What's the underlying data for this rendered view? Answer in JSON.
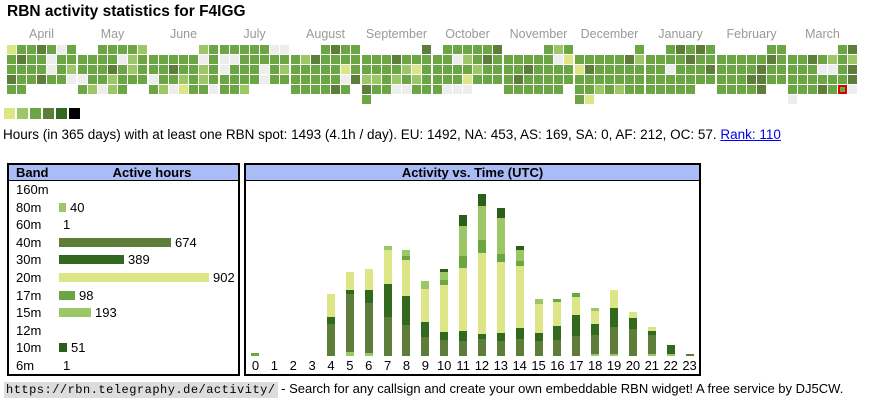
{
  "title": "RBN activity statistics for F4IGG",
  "colors": {
    "level_palette": {
      "0": "#ededed",
      "1": "#dce687",
      "2": "#9dc767",
      "3": "#6ca644",
      "4": "#5e7d3b",
      "5": "#33691e",
      "6": "#000000"
    },
    "band_colors": {
      "80m": "#9dc767",
      "40m": "#5e7d3b",
      "30m": "#33691e",
      "20m": "#dce687",
      "17m": "#6ca644",
      "15m": "#9dc767",
      "10m": "#2b5e18"
    },
    "header_bg": "#aabcf5",
    "highlight_border": "#dd0000",
    "link": "#0000ee"
  },
  "heatmap": {
    "months": [
      {
        "label": "April",
        "start_col": 1,
        "cells": [
          1,
          3,
          3,
          4,
          3,
          0,
          3,
          3,
          4,
          3,
          3,
          0,
          3,
          3,
          3,
          3,
          3,
          3,
          0,
          3,
          2,
          4,
          3,
          3,
          4,
          3,
          3,
          0,
          3,
          3
        ]
      },
      {
        "label": "May",
        "start_col": 3,
        "cells": [
          3,
          3,
          3,
          3,
          2,
          3,
          3,
          3,
          3,
          0,
          2,
          3,
          3,
          3,
          3,
          4,
          3,
          2,
          3,
          0,
          3,
          3,
          2,
          3,
          3,
          3,
          3,
          2,
          0,
          2,
          3
        ]
      },
      {
        "label": "June",
        "start_col": 6,
        "cells": [
          2,
          3,
          3,
          3,
          3,
          3,
          3,
          0,
          3,
          3,
          3,
          4,
          3,
          3,
          2,
          3,
          0,
          3,
          3,
          2,
          3,
          2,
          3,
          3,
          2,
          0,
          1,
          3,
          3,
          0
        ]
      },
      {
        "label": "July",
        "start_col": 1,
        "cells": [
          3,
          3,
          3,
          3,
          3,
          0,
          0,
          0,
          0,
          3,
          3,
          3,
          3,
          3,
          0,
          3,
          3,
          3,
          0,
          3,
          2,
          3,
          3,
          3,
          3,
          0,
          3,
          3,
          3,
          3,
          2
        ]
      },
      {
        "label": "August",
        "start_col": 4,
        "cells": [
          3,
          4,
          3,
          3,
          3,
          2,
          4,
          3,
          3,
          3,
          3,
          3,
          3,
          3,
          3,
          3,
          1,
          3,
          3,
          3,
          3,
          3,
          3,
          0,
          4,
          3,
          3,
          3,
          3,
          4,
          3
        ]
      },
      {
        "label": "September",
        "start_col": 7,
        "cells": [
          4,
          3,
          3,
          3,
          4,
          3,
          3,
          3,
          3,
          3,
          3,
          3,
          2,
          1,
          3,
          2,
          2,
          3,
          2,
          3,
          2,
          3,
          4,
          3,
          3,
          0,
          0,
          3,
          3,
          3
        ]
      },
      {
        "label": "October",
        "start_col": 2,
        "cells": [
          3,
          3,
          3,
          3,
          3,
          4,
          3,
          3,
          0,
          2,
          3,
          4,
          3,
          3,
          3,
          3,
          3,
          2,
          3,
          3,
          3,
          3,
          3,
          1,
          3,
          3,
          3,
          3,
          0,
          0,
          0
        ]
      },
      {
        "label": "November",
        "start_col": 5,
        "cells": [
          3,
          2,
          3,
          3,
          3,
          3,
          3,
          3,
          0,
          1,
          3,
          3,
          4,
          3,
          3,
          3,
          3,
          3,
          4,
          3,
          3,
          3,
          3,
          3,
          3,
          3,
          3,
          3,
          3,
          3
        ]
      },
      {
        "label": "December",
        "start_col": 7,
        "cells": [
          3,
          3,
          3,
          3,
          3,
          3,
          4,
          2,
          1,
          4,
          3,
          3,
          3,
          3,
          3,
          3,
          3,
          3,
          3,
          3,
          3,
          3,
          3,
          3,
          2,
          3,
          2,
          3,
          3,
          3,
          1
        ]
      },
      {
        "label": "January",
        "start_col": 3,
        "cells": [
          3,
          4,
          3,
          4,
          3,
          3,
          3,
          3,
          3,
          4,
          3,
          3,
          3,
          3,
          0,
          3,
          3,
          3,
          4,
          3,
          3,
          3,
          3,
          3,
          3,
          3,
          3,
          3,
          3,
          3,
          3
        ]
      },
      {
        "label": "February",
        "start_col": 6,
        "cells": [
          3,
          3,
          3,
          3,
          3,
          3,
          3,
          4,
          3,
          3,
          3,
          3,
          3,
          4,
          3,
          3,
          3,
          3,
          3,
          4,
          4,
          3,
          3,
          3,
          3,
          3,
          3,
          4
        ]
      },
      {
        "label": "March",
        "start_col": 6,
        "cells": [
          3,
          4,
          3,
          3,
          4,
          3,
          2,
          3,
          2,
          3,
          3,
          3,
          0,
          0,
          3,
          4,
          3,
          3,
          3,
          3,
          3,
          3,
          4,
          3,
          3,
          3,
          4,
          3,
          3,
          0,
          0
        ]
      }
    ],
    "highlight": {
      "month": "March",
      "day_index": 28
    },
    "legend_levels": [
      1,
      2,
      3,
      4,
      5,
      6
    ]
  },
  "summary": {
    "text": "Hours (in 365 days) with at least one RBN spot: 1493 (4.1h / day). EU: 1492, NA: 453, AS: 169, SA: 0, AF: 212, OC: 57. ",
    "rank_link": "Rank: 110"
  },
  "band_panel": {
    "header_band": "Band",
    "header_hours": "Active hours",
    "rows": [
      {
        "band": "160m",
        "value_label": "",
        "show_bar": false
      },
      {
        "band": "80m",
        "value_label": "40",
        "show_bar": true
      },
      {
        "band": "60m",
        "value_label": "1",
        "show_bar": false
      },
      {
        "band": "40m",
        "value_label": "674",
        "show_bar": true
      },
      {
        "band": "30m",
        "value_label": "389",
        "show_bar": true
      },
      {
        "band": "20m",
        "value_label": "902",
        "show_bar": true
      },
      {
        "band": "17m",
        "value_label": "98",
        "show_bar": true
      },
      {
        "band": "15m",
        "value_label": "193",
        "show_bar": true
      },
      {
        "band": "12m",
        "value_label": "",
        "show_bar": false
      },
      {
        "band": "10m",
        "value_label": "51",
        "show_bar": true
      },
      {
        "band": "6m",
        "value_label": "1",
        "show_bar": false
      }
    ]
  },
  "time_panel": {
    "header": "Activity vs. Time (UTC)",
    "stack_order": [
      "80m",
      "40m",
      "30m",
      "20m",
      "17m",
      "15m",
      "10m"
    ]
  },
  "chart_data": [
    {
      "type": "bar",
      "title": "Active hours by band",
      "orientation": "horizontal",
      "categories": [
        "160m",
        "80m",
        "60m",
        "40m",
        "30m",
        "20m",
        "17m",
        "15m",
        "12m",
        "10m",
        "6m"
      ],
      "values": [
        0,
        40,
        1,
        674,
        389,
        902,
        98,
        193,
        0,
        51,
        1
      ],
      "xlabel": "Band",
      "ylabel": "Active hours",
      "max_value": 902
    },
    {
      "type": "bar",
      "stacked": true,
      "title": "Activity vs. Time (UTC)",
      "x": [
        "0",
        "1",
        "2",
        "3",
        "4",
        "5",
        "6",
        "7",
        "8",
        "9",
        "10",
        "11",
        "12",
        "13",
        "14",
        "15",
        "16",
        "17",
        "18",
        "19",
        "20",
        "21",
        "22",
        "23"
      ],
      "units": "pixel heights (relative activity), stacked bottom-to-top in series order",
      "series": [
        {
          "name": "80m",
          "values": [
            0,
            0,
            0,
            0,
            0,
            4,
            3,
            0,
            0,
            0,
            0,
            0,
            0,
            0,
            0,
            0,
            0,
            0,
            2,
            2,
            0,
            2,
            2,
            0
          ]
        },
        {
          "name": "40m",
          "values": [
            0,
            0,
            0,
            0,
            32,
            58,
            50,
            39,
            31,
            19,
            16,
            15,
            17,
            15,
            17,
            15,
            16,
            20,
            19,
            27,
            27,
            19,
            0,
            2
          ]
        },
        {
          "name": "30m",
          "values": [
            0,
            0,
            0,
            0,
            7,
            4,
            13,
            33,
            29,
            15,
            8,
            10,
            5,
            8,
            11,
            8,
            14,
            21,
            11,
            19,
            11,
            4,
            9,
            0
          ]
        },
        {
          "name": "20m",
          "values": [
            0,
            0,
            0,
            0,
            23,
            18,
            21,
            34,
            36,
            33,
            47,
            63,
            81,
            71,
            62,
            29,
            24,
            18,
            13,
            18,
            6,
            4,
            0,
            0
          ]
        },
        {
          "name": "17m",
          "values": [
            3,
            0,
            0,
            0,
            0,
            0,
            0,
            0,
            4,
            0,
            5,
            12,
            13,
            8,
            5,
            0,
            3,
            4,
            0,
            0,
            0,
            0,
            0,
            0
          ]
        },
        {
          "name": "15m",
          "values": [
            0,
            0,
            0,
            0,
            0,
            0,
            0,
            4,
            6,
            8,
            8,
            30,
            34,
            36,
            11,
            5,
            0,
            0,
            3,
            0,
            0,
            0,
            0,
            0
          ]
        },
        {
          "name": "10m",
          "values": [
            0,
            0,
            0,
            0,
            0,
            0,
            0,
            0,
            0,
            0,
            3,
            11,
            12,
            10,
            4,
            0,
            0,
            0,
            0,
            0,
            0,
            0,
            0,
            0
          ]
        }
      ],
      "legend_position": "none",
      "grid": false
    }
  ],
  "footer": {
    "url": "https://rbn.telegraphy.de/activity/",
    "text": " - Search for any callsign and create your own embeddable RBN widget! A free service by DJ5CW."
  }
}
